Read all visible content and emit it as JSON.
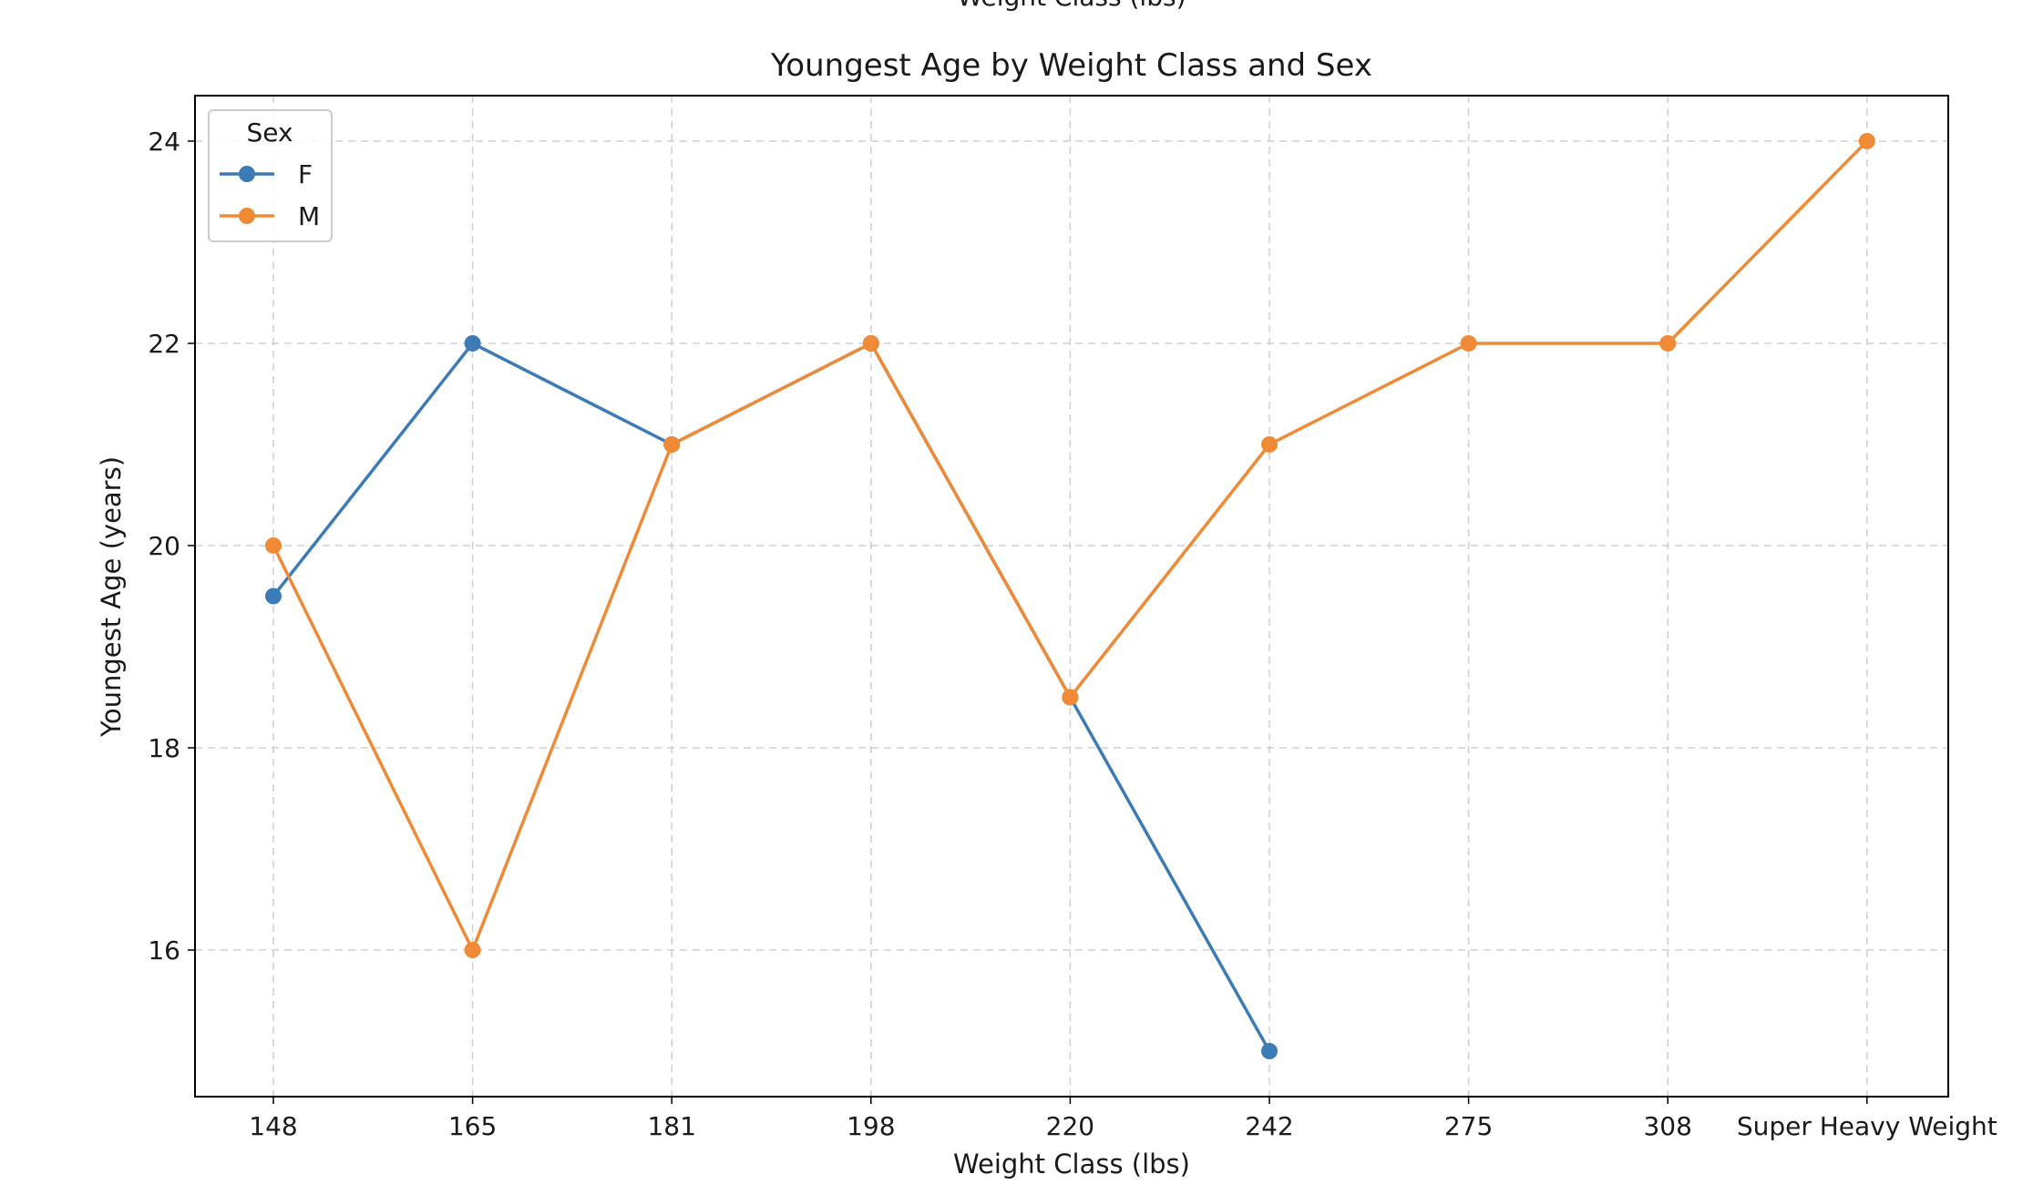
{
  "clipped_top_label": "Weight Class (lbs)",
  "chart_data": {
    "type": "line",
    "title": "Youngest Age by Weight Class and Sex",
    "xlabel": "Weight Class (lbs)",
    "ylabel": "Youngest Age (years)",
    "categories": [
      "148",
      "165",
      "181",
      "198",
      "220",
      "242",
      "275",
      "308",
      "Super Heavy Weight"
    ],
    "yticks": [
      16,
      18,
      20,
      22,
      24
    ],
    "ylim": [
      14.55,
      24.45
    ],
    "grid": true,
    "legend": {
      "title": "Sex",
      "position": "top-left"
    },
    "series": [
      {
        "name": "F",
        "color": "#3d7bb6",
        "values": [
          19.5,
          22,
          21,
          22,
          18.5,
          15,
          null,
          null,
          null
        ]
      },
      {
        "name": "M",
        "color": "#ef8a36",
        "values": [
          20,
          16,
          21,
          22,
          18.5,
          21,
          22,
          22,
          24
        ]
      }
    ]
  }
}
